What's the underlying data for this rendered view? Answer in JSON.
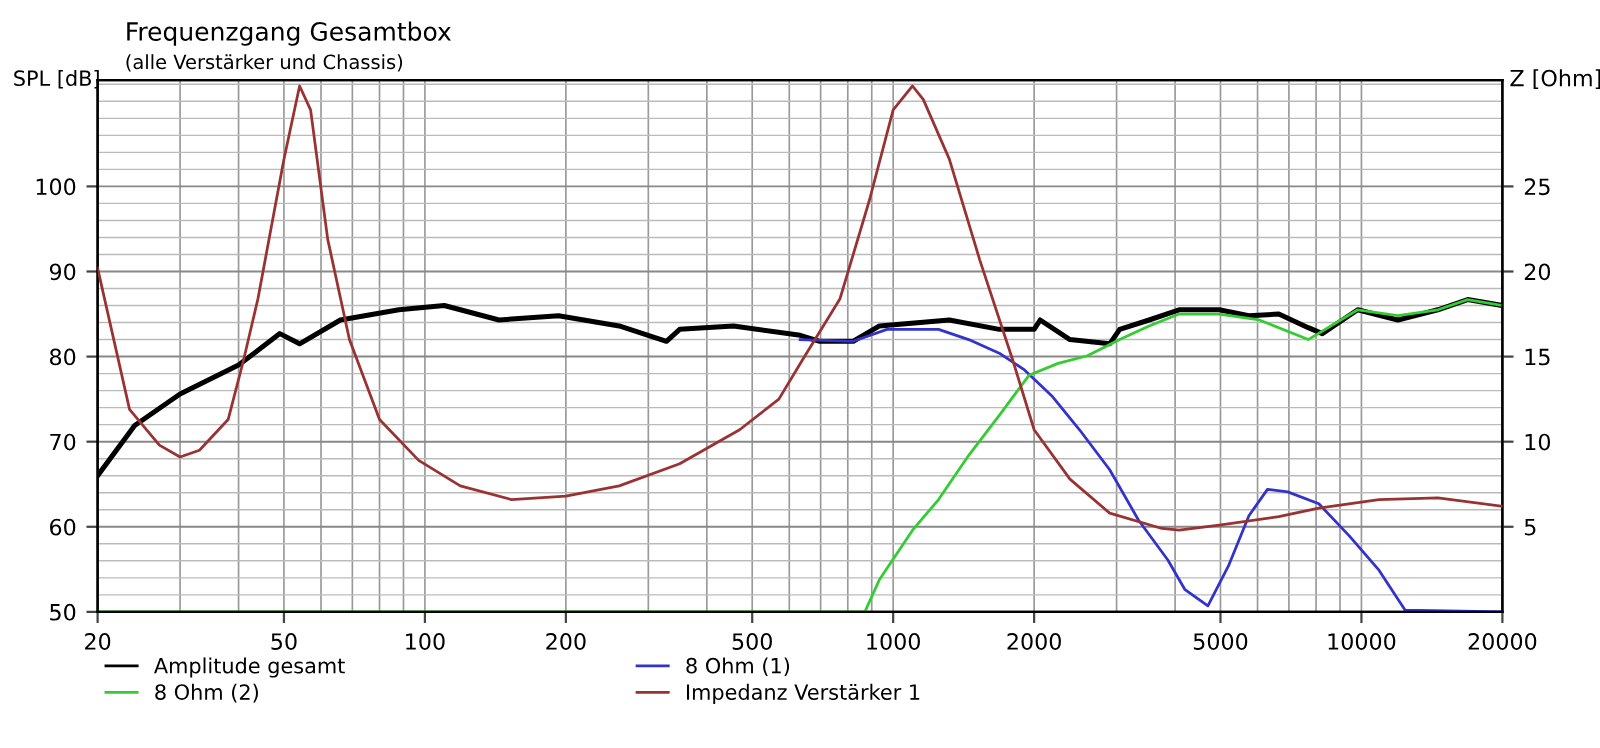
{
  "chart_data": {
    "type": "line",
    "title": "Frequenzgang Gesamtbox",
    "subtitle": "(alle Verstärker und Chassis)",
    "ylabel": "SPL [dB]",
    "y2label": "Z [Ohm]",
    "log": "x",
    "xlim": [
      20,
      20000
    ],
    "xticks": [
      20,
      50,
      100,
      200,
      500,
      1000,
      2000,
      5000,
      10000,
      20000
    ],
    "ylim": [
      50,
      112.5
    ],
    "yticks": [
      50,
      60,
      70,
      80,
      90,
      100
    ],
    "y2lim": [
      0,
      31.25
    ],
    "y2ticks": [
      5,
      10,
      15,
      20,
      25
    ],
    "grid": true,
    "legend": "bottom",
    "marker": "none",
    "line_style": "solid",
    "series": [
      {
        "name": "Amplitude gesamt",
        "color": "#000000",
        "x": [
          20,
          24,
          30,
          40,
          49,
          54,
          66,
          88,
          110,
          144,
          193,
          260,
          328,
          350,
          456,
          633,
          697,
          822,
          935,
          1318,
          1685,
          2000,
          2060,
          2385,
          2900,
          3046,
          3520,
          4080,
          4970,
          5750,
          6660,
          7700,
          8250,
          9820,
          11960,
          14560,
          16860,
          20000
        ],
        "values": [
          66,
          71.9,
          75.6,
          79,
          82.7,
          81.5,
          84.3,
          85.5,
          86,
          84.3,
          84.8,
          83.6,
          81.8,
          83.2,
          83.6,
          82.5,
          81.8,
          81.8,
          83.6,
          84.3,
          83.2,
          83.2,
          84.3,
          82,
          81.5,
          83.2,
          84.3,
          85.5,
          85.5,
          84.8,
          85,
          83.4,
          82.7,
          85.5,
          84.3,
          85.5,
          86.7,
          86
        ]
      },
      {
        "name": "8 Ohm (1)",
        "color": "#3333cc",
        "x": [
          633,
          822,
          970,
          1250,
          1450,
          1685,
          1900,
          2180,
          2500,
          2900,
          3340,
          3860,
          4200,
          4700,
          5200,
          5750,
          6300,
          6960,
          8110,
          9430,
          10900,
          12400,
          20000
        ],
        "values": [
          82,
          81.8,
          83.2,
          83.2,
          82,
          80.4,
          78.5,
          75.4,
          71.4,
          66.7,
          60.8,
          56.1,
          52.6,
          50.7,
          55.4,
          61.3,
          64.4,
          64.1,
          62.7,
          58.9,
          54.9,
          50.2,
          50
        ]
      },
      {
        "name": "8 Ohm (2)",
        "color": "#33cc33",
        "x": [
          20,
          870,
          935,
          1100,
          1250,
          1450,
          1685,
          1950,
          2250,
          2600,
          3046,
          3520,
          4080,
          4970,
          6050,
          7700,
          9820,
          11960,
          14560,
          16860,
          20000
        ],
        "values": [
          50,
          50,
          53.8,
          59.6,
          63.2,
          68.4,
          73.1,
          77.8,
          79.2,
          80.1,
          82,
          83.6,
          85,
          85,
          84.3,
          82,
          85.5,
          84.8,
          85.5,
          86.7,
          86
        ]
      },
      {
        "name": "Impedanz Verstärker 1",
        "color": "#993333",
        "axis": "y2",
        "x": [
          20,
          23.4,
          27.1,
          30,
          33,
          38,
          41,
          44,
          50,
          54,
          57,
          62,
          69,
          80,
          97,
          119,
          153,
          200,
          260,
          350,
          470,
          570,
          640,
          770,
          890,
          1000,
          1100,
          1160,
          1318,
          1530,
          1800,
          2000,
          2385,
          2900,
          3750,
          4080,
          4970,
          6660,
          8110,
          10900,
          14560,
          20000
        ],
        "values": [
          20.2,
          11.9,
          9.8,
          9.1,
          9.5,
          11.3,
          14.8,
          18.4,
          26.6,
          30.9,
          29.5,
          21.9,
          16,
          11.3,
          8.9,
          7.4,
          6.6,
          6.8,
          7.4,
          8.7,
          10.7,
          12.5,
          14.8,
          18.4,
          24.2,
          29.5,
          30.9,
          30.1,
          26.6,
          20.7,
          14.8,
          10.7,
          7.8,
          5.8,
          4.9,
          4.8,
          5.1,
          5.6,
          6.1,
          6.6,
          6.7,
          6.2
        ]
      }
    ]
  }
}
